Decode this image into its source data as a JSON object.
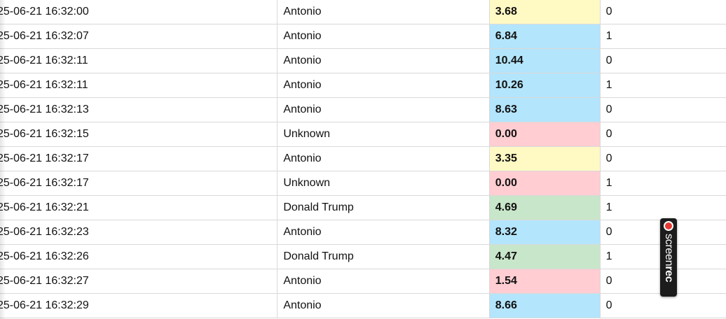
{
  "rows": [
    {
      "time": "25-06-21 16:32:00",
      "name": "Antonio",
      "score": "3.68",
      "score_color": "yellow",
      "flag": "0"
    },
    {
      "time": "25-06-21 16:32:07",
      "name": "Antonio",
      "score": "6.84",
      "score_color": "blue",
      "flag": "1"
    },
    {
      "time": "25-06-21 16:32:11",
      "name": "Antonio",
      "score": "10.44",
      "score_color": "blue",
      "flag": "0"
    },
    {
      "time": "25-06-21 16:32:11",
      "name": "Antonio",
      "score": "10.26",
      "score_color": "blue",
      "flag": "1"
    },
    {
      "time": "25-06-21 16:32:13",
      "name": "Antonio",
      "score": "8.63",
      "score_color": "blue",
      "flag": "0"
    },
    {
      "time": "25-06-21 16:32:15",
      "name": "Unknown",
      "score": "0.00",
      "score_color": "pink",
      "flag": "0"
    },
    {
      "time": "25-06-21 16:32:17",
      "name": "Antonio",
      "score": "3.35",
      "score_color": "yellow",
      "flag": "0"
    },
    {
      "time": "25-06-21 16:32:17",
      "name": "Unknown",
      "score": "0.00",
      "score_color": "pink",
      "flag": "1"
    },
    {
      "time": "25-06-21 16:32:21",
      "name": "Donald Trump",
      "score": "4.69",
      "score_color": "green",
      "flag": "1"
    },
    {
      "time": "25-06-21 16:32:23",
      "name": "Antonio",
      "score": "8.32",
      "score_color": "blue",
      "flag": "0"
    },
    {
      "time": "25-06-21 16:32:26",
      "name": "Donald Trump",
      "score": "4.47",
      "score_color": "green",
      "flag": "1"
    },
    {
      "time": "25-06-21 16:32:27",
      "name": "Antonio",
      "score": "1.54",
      "score_color": "pink",
      "flag": "0"
    },
    {
      "time": "25-06-21 16:32:29",
      "name": "Antonio",
      "score": "8.66",
      "score_color": "blue",
      "flag": "0"
    }
  ],
  "score_colors": {
    "yellow": "#fff9c4",
    "blue": "#b3e5fc",
    "pink": "#ffcdd2",
    "green": "#c8e6c9"
  },
  "recorder": {
    "label_regular": "screen",
    "label_bold": "rec",
    "icon": "record-dot-icon"
  }
}
